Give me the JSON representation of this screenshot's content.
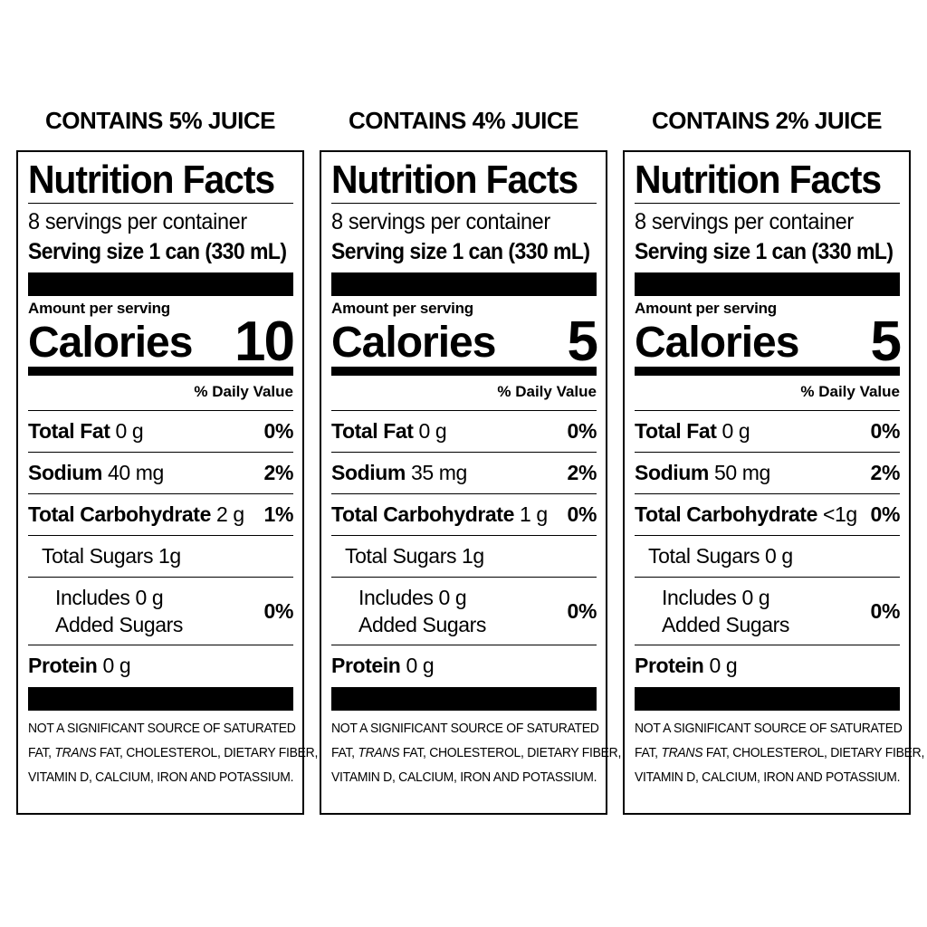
{
  "labels": [
    {
      "heading": "CONTAINS 5% JUICE",
      "title": "Nutrition Facts",
      "servings": "8 servings per container",
      "serving_size": "Serving size 1 can (330 mL)",
      "amount_per_serving": "Amount per serving",
      "calories_label": "Calories",
      "calories": "10",
      "daily_value": "% Daily Value",
      "total_fat": {
        "label": "Total Fat",
        "amount": "0 g",
        "pct": "0%"
      },
      "sodium": {
        "label": "Sodium",
        "amount": "40 mg",
        "pct": "2%"
      },
      "carbs": {
        "label": "Total Carbohydrate",
        "amount": "2 g",
        "pct": "1%"
      },
      "sugars": {
        "label": "Total Sugars 1g"
      },
      "added_sugars": {
        "line1": "Includes 0 g",
        "line2": "Added Sugars",
        "pct": "0%"
      },
      "protein": {
        "label": "Protein",
        "amount": "0 g"
      },
      "footnote": {
        "line1": "NOT A SIGNIFICANT SOURCE OF SATURATED",
        "line2_pre": "FAT,",
        "line2_trans": "TRANS",
        "line2_post": "FAT, CHOLESTEROL, DIETARY FIBER,",
        "line3": "VITAMIN D, CALCIUM, IRON AND POTASSIUM."
      }
    },
    {
      "heading": "CONTAINS 4% JUICE",
      "title": "Nutrition Facts",
      "servings": "8 servings per container",
      "serving_size": "Serving size 1 can (330 mL)",
      "amount_per_serving": "Amount per serving",
      "calories_label": "Calories",
      "calories": "5",
      "daily_value": "% Daily Value",
      "total_fat": {
        "label": "Total Fat",
        "amount": "0 g",
        "pct": "0%"
      },
      "sodium": {
        "label": "Sodium",
        "amount": "35 mg",
        "pct": "2%"
      },
      "carbs": {
        "label": "Total Carbohydrate",
        "amount": "1 g",
        "pct": "0%"
      },
      "sugars": {
        "label": "Total Sugars 1g"
      },
      "added_sugars": {
        "line1": "Includes 0 g",
        "line2": "Added Sugars",
        "pct": "0%"
      },
      "protein": {
        "label": "Protein",
        "amount": "0 g"
      },
      "footnote": {
        "line1": "NOT A SIGNIFICANT SOURCE OF SATURATED",
        "line2_pre": "FAT,",
        "line2_trans": "TRANS",
        "line2_post": "FAT, CHOLESTEROL, DIETARY FIBER,",
        "line3": "VITAMIN D, CALCIUM, IRON AND POTASSIUM."
      }
    },
    {
      "heading": "CONTAINS 2% JUICE",
      "title": "Nutrition Facts",
      "servings": "8 servings per container",
      "serving_size": "Serving size 1 can (330 mL)",
      "amount_per_serving": "Amount per serving",
      "calories_label": "Calories",
      "calories": "5",
      "daily_value": "% Daily Value",
      "total_fat": {
        "label": "Total Fat",
        "amount": "0 g",
        "pct": "0%"
      },
      "sodium": {
        "label": "Sodium",
        "amount": "50 mg",
        "pct": "2%"
      },
      "carbs": {
        "label": "Total Carbohydrate",
        "amount": "<1g",
        "pct": "0%"
      },
      "sugars": {
        "label": "Total Sugars 0 g"
      },
      "added_sugars": {
        "line1": "Includes 0 g",
        "line2": "Added Sugars",
        "pct": "0%"
      },
      "protein": {
        "label": "Protein",
        "amount": "0 g"
      },
      "footnote": {
        "line1": "NOT A SIGNIFICANT SOURCE OF SATURATED",
        "line2_pre": "FAT,",
        "line2_trans": "TRANS",
        "line2_post": "FAT, CHOLESTEROL, DIETARY FIBER,",
        "line3": "VITAMIN D, CALCIUM, IRON AND POTASSIUM."
      }
    }
  ]
}
